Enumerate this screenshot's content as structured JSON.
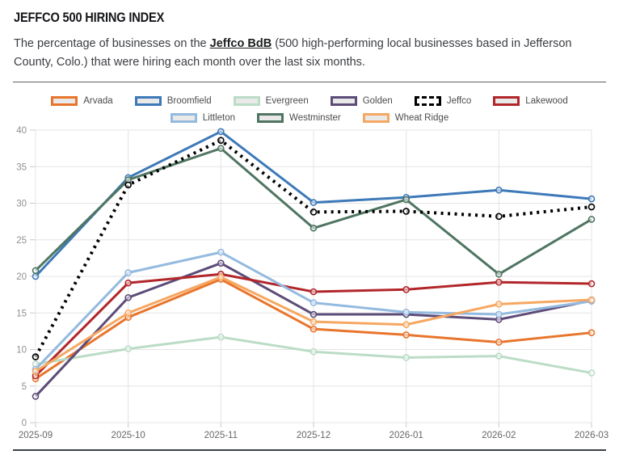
{
  "page": {
    "title": "JEFFCO 500 HIRING INDEX",
    "subtitle_before": "The percentage of businesses on the ",
    "subtitle_link": "Jeffco BdB",
    "subtitle_after": " (500 high-performing local businesses based in Jefferson County, Colo.) that were hiring each month over the last six months."
  },
  "chart_data": {
    "type": "line",
    "x": [
      "2025-09",
      "2025-10",
      "2025-11",
      "2025-12",
      "2026-01",
      "2026-02",
      "2026-03"
    ],
    "series": [
      {
        "name": "Arvada",
        "color": "#e8752c",
        "dashed": false,
        "values": [
          6.0,
          14.4,
          19.6,
          12.8,
          12.0,
          11.0,
          12.3
        ]
      },
      {
        "name": "Broomfield",
        "color": "#3d79b8",
        "dashed": false,
        "values": [
          20.0,
          33.5,
          39.8,
          30.1,
          30.8,
          31.8,
          30.6
        ]
      },
      {
        "name": "Evergreen",
        "color": "#bbdcc6",
        "dashed": false,
        "values": [
          8.0,
          10.1,
          11.7,
          9.7,
          8.9,
          9.1,
          6.8
        ]
      },
      {
        "name": "Golden",
        "color": "#5d4c78",
        "dashed": false,
        "values": [
          3.6,
          17.1,
          21.8,
          14.8,
          14.8,
          14.1,
          16.7
        ]
      },
      {
        "name": "Jeffco",
        "color": "#000000",
        "dashed": true,
        "values": [
          9.0,
          32.5,
          38.6,
          28.8,
          28.9,
          28.2,
          29.5
        ]
      },
      {
        "name": "Lakewood",
        "color": "#b2262a",
        "dashed": false,
        "values": [
          6.4,
          19.1,
          20.3,
          17.9,
          18.2,
          19.2,
          19.0
        ]
      },
      {
        "name": "Littleton",
        "color": "#94badf",
        "dashed": false,
        "values": [
          7.3,
          20.5,
          23.3,
          16.4,
          15.1,
          14.8,
          16.6
        ]
      },
      {
        "name": "Westminster",
        "color": "#4f7562",
        "dashed": false,
        "values": [
          20.8,
          33.2,
          37.5,
          26.6,
          30.5,
          20.3,
          27.8
        ]
      },
      {
        "name": "Wheat Ridge",
        "color": "#f6a761",
        "dashed": false,
        "values": [
          7.0,
          15.0,
          19.9,
          13.8,
          13.4,
          16.2,
          16.8
        ]
      }
    ],
    "yticks": [
      0,
      5,
      10,
      15,
      20,
      25,
      30,
      35,
      40
    ],
    "ylim": [
      0,
      40
    ],
    "xlabel": "",
    "ylabel": "",
    "grid": true,
    "legend_position": "top"
  },
  "colors": {
    "grid": "#e4e4e4",
    "tick": "#c9c9c9",
    "y_label": "#8f9092",
    "x_label": "#666769"
  }
}
